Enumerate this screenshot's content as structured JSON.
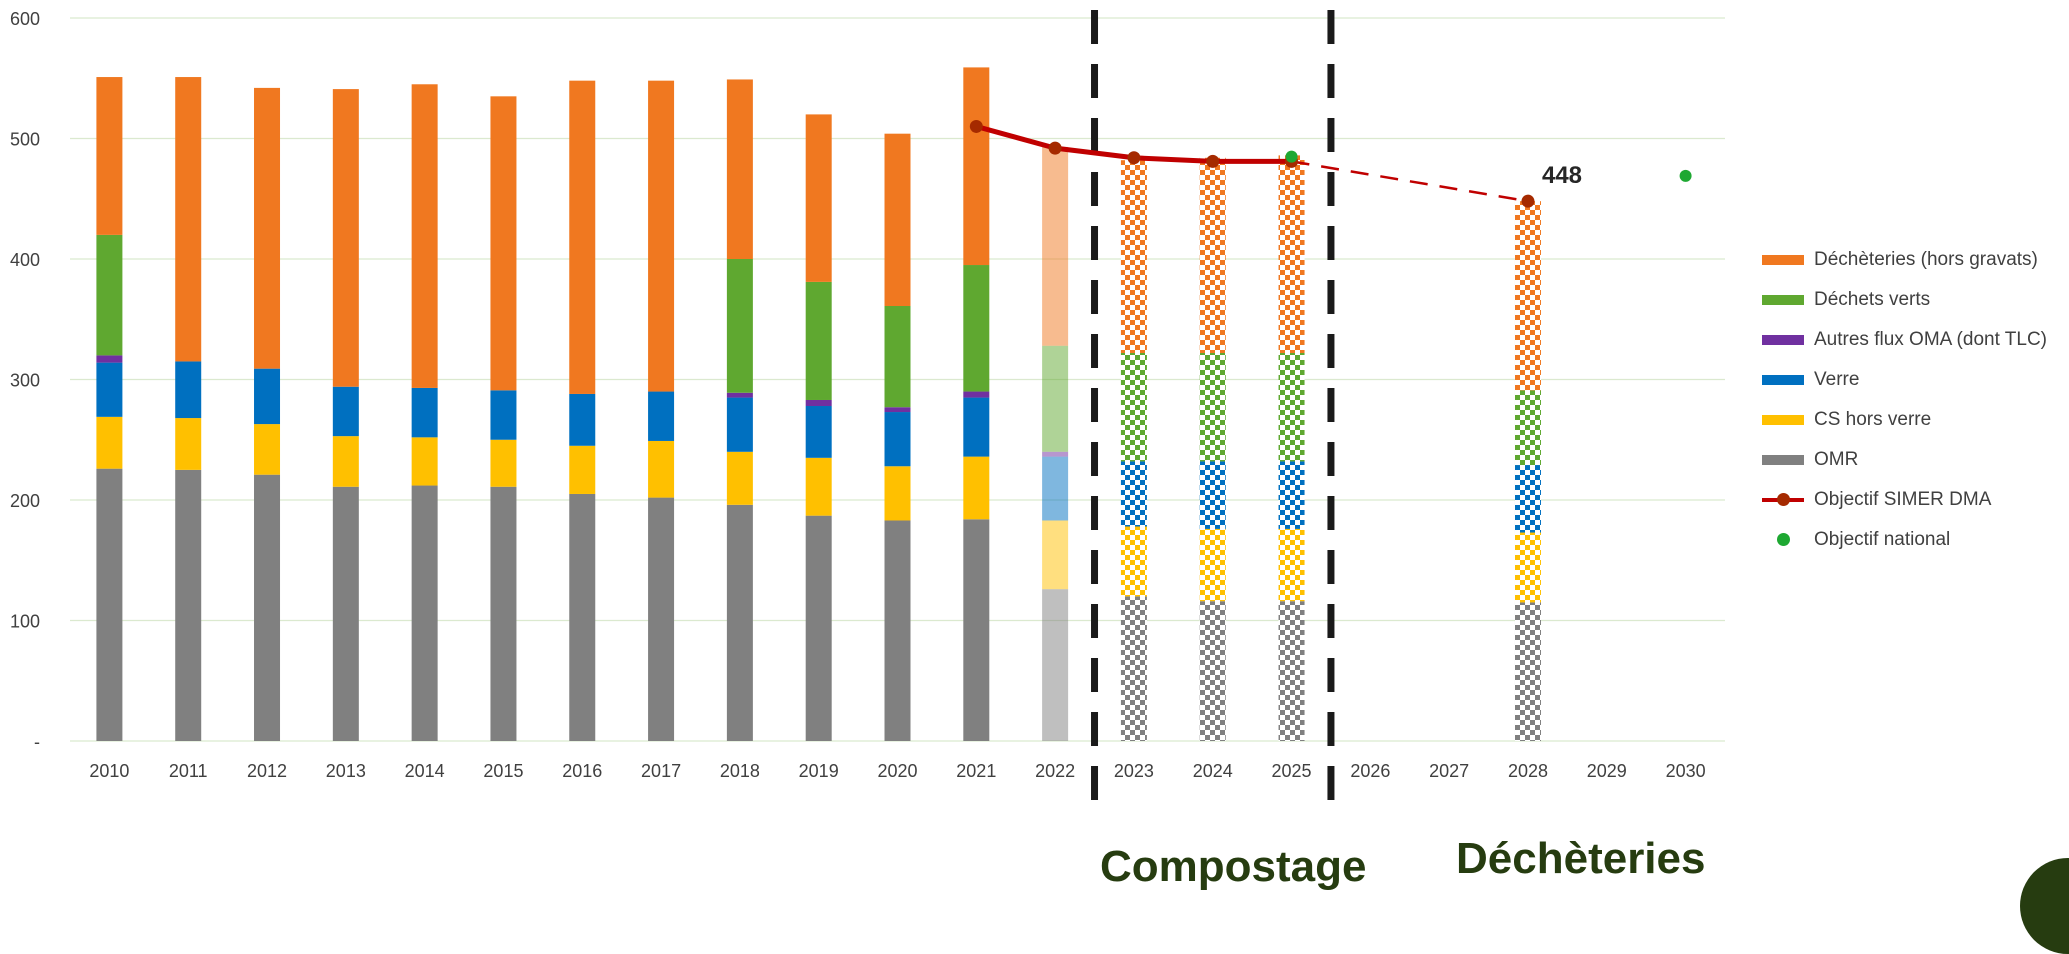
{
  "chart_data": {
    "type": "bar",
    "stacked": true,
    "categories": [
      "2010",
      "2011",
      "2012",
      "2013",
      "2014",
      "2015",
      "2016",
      "2017",
      "2018",
      "2019",
      "2020",
      "2021",
      "2022",
      "2023",
      "2024",
      "2025",
      "2026",
      "2027",
      "2028",
      "2029",
      "2030"
    ],
    "ylim": [
      0,
      600
    ],
    "yticks": [
      0,
      100,
      200,
      300,
      400,
      500,
      600
    ],
    "ytick_labels": [
      "-",
      "100",
      "200",
      "300",
      "400",
      "500",
      "600"
    ],
    "grid": true,
    "legend_position": "right",
    "series": [
      {
        "name": "OMR",
        "color": "#808080",
        "values": [
          226,
          225,
          221,
          211,
          212,
          211,
          205,
          202,
          196,
          187,
          183,
          184,
          126,
          120,
          116,
          116,
          null,
          null,
          115,
          null,
          null
        ]
      },
      {
        "name": "CS hors verre",
        "color": "#ffc000",
        "values": [
          43,
          43,
          42,
          42,
          40,
          39,
          40,
          47,
          44,
          48,
          45,
          52,
          57,
          58,
          60,
          60,
          null,
          null,
          58,
          null,
          null
        ]
      },
      {
        "name": "Verre",
        "color": "#0070c0",
        "values": [
          45,
          47,
          46,
          41,
          41,
          41,
          43,
          41,
          45,
          43,
          45,
          49,
          53,
          54,
          56,
          56,
          null,
          null,
          56,
          null,
          null
        ]
      },
      {
        "name": "Autres flux OMA (dont TLC)",
        "color": "#7030a0",
        "values": [
          6,
          0,
          0,
          0,
          0,
          0,
          0,
          0,
          4,
          5,
          4,
          5,
          4,
          0,
          0,
          0,
          null,
          null,
          0,
          null,
          null
        ]
      },
      {
        "name": "Déchets verts",
        "color": "#5fa830",
        "values": [
          100,
          0,
          0,
          0,
          0,
          0,
          0,
          0,
          111,
          98,
          84,
          105,
          88,
          90,
          90,
          90,
          null,
          null,
          62,
          null,
          null
        ]
      },
      {
        "name": "Déchèteries (hors gravats)",
        "color": "#f07820",
        "values": [
          131,
          236,
          233,
          247,
          252,
          244,
          260,
          258,
          149,
          139,
          143,
          164,
          165,
          160,
          162,
          164,
          null,
          null,
          157,
          null,
          null
        ]
      }
    ],
    "bar_style": {
      "2022": "light",
      "2023": "checkered",
      "2024": "checkered",
      "2025": "checkered",
      "2028": "checkered"
    },
    "lines": [
      {
        "name": "Objectif SIMER DMA",
        "color": "#c00000",
        "marker_color": "#a52a00",
        "points": [
          {
            "x": "2021",
            "y": 510
          },
          {
            "x": "2022",
            "y": 492
          },
          {
            "x": "2023",
            "y": 484
          },
          {
            "x": "2024",
            "y": 481
          },
          {
            "x": "2025",
            "y": 481
          },
          {
            "x": "2028",
            "y": 448,
            "dashed_from_previous": true,
            "label": "448"
          }
        ]
      }
    ],
    "scatter": [
      {
        "name": "Objectif national",
        "color": "#1ea832",
        "points": [
          {
            "x": "2025",
            "y": 485
          },
          {
            "x": "2030",
            "y": 469
          }
        ]
      }
    ],
    "dividers_after": [
      "2022",
      "2025"
    ],
    "annotations": [
      {
        "text": "Compostage",
        "color": "#263c10"
      },
      {
        "text": "Déchèteries",
        "color": "#263c10"
      }
    ]
  },
  "legend": [
    {
      "key": "dech",
      "label": "Déchèteries (hors gravats)",
      "color": "#f07820",
      "kind": "bar"
    },
    {
      "key": "dv",
      "label": "Déchets verts",
      "color": "#5fa830",
      "kind": "bar"
    },
    {
      "key": "autres",
      "label": "Autres flux OMA (dont TLC)",
      "color": "#7030a0",
      "kind": "bar"
    },
    {
      "key": "verre",
      "label": "Verre",
      "color": "#0070c0",
      "kind": "bar"
    },
    {
      "key": "cs",
      "label": "CS hors verre",
      "color": "#ffc000",
      "kind": "bar"
    },
    {
      "key": "omr",
      "label": "OMR",
      "color": "#808080",
      "kind": "bar"
    },
    {
      "key": "simer",
      "label": "Objectif SIMER DMA",
      "color": "#c00000",
      "kind": "line"
    },
    {
      "key": "nat",
      "label": "Objectif national",
      "color": "#1ea832",
      "kind": "dot"
    }
  ]
}
